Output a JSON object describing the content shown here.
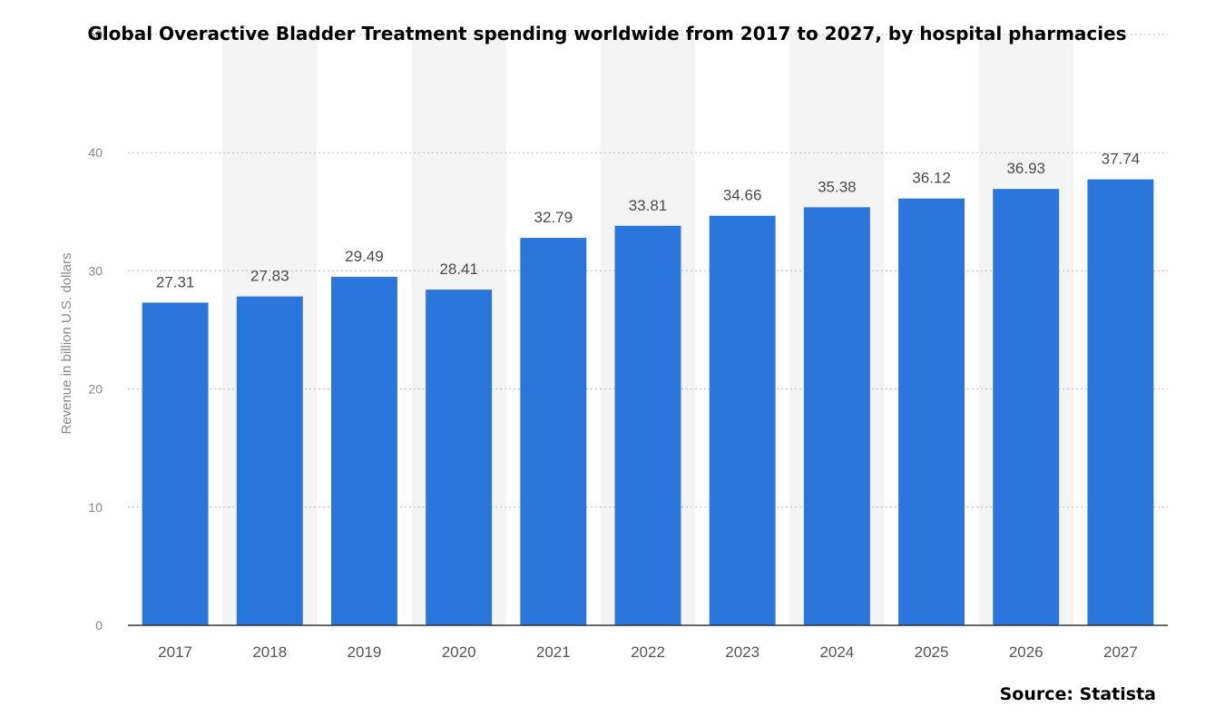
{
  "chart_data": {
    "type": "bar",
    "title": "Global Overactive Bladder Treatment spending worldwide from 2017 to 2027, by hospital pharmacies",
    "xlabel": "",
    "ylabel": "Revenue in billion U.S. dollars",
    "categories": [
      "2017",
      "2018",
      "2019",
      "2020",
      "2021",
      "2022",
      "2023",
      "2024",
      "2025",
      "2026",
      "2027"
    ],
    "values": [
      27.31,
      27.83,
      29.49,
      28.41,
      32.79,
      33.81,
      34.66,
      35.38,
      36.12,
      36.93,
      37.74
    ],
    "data_labels": [
      "27.31",
      "27.83",
      "29.49",
      "28.41",
      "32.79",
      "33.81",
      "34.66",
      "35.38",
      "36.12",
      "36.93",
      "37.74"
    ],
    "ylim": [
      0,
      50
    ],
    "yticks": [
      "0",
      "10",
      "20",
      "30",
      "40",
      "50"
    ],
    "grid": true,
    "legend": "none",
    "bar_color": "#2a76dd",
    "alternate_column_band_color": "#f4f4f4",
    "source": "Source: Statista"
  }
}
